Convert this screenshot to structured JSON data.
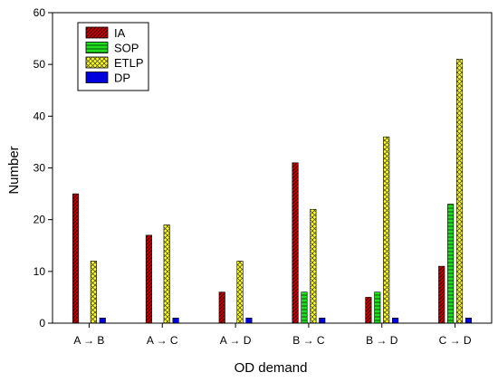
{
  "chart_data": {
    "type": "bar",
    "title": "",
    "xlabel": "OD demand",
    "ylabel": "Number",
    "ylim": [
      0,
      60
    ],
    "yticks": [
      0,
      10,
      20,
      30,
      40,
      50,
      60
    ],
    "categories": [
      "A → B",
      "A → C",
      "A → D",
      "B → C",
      "B → D",
      "C → D"
    ],
    "series": [
      {
        "name": "IA",
        "values": [
          25,
          17,
          6,
          31,
          5,
          11
        ],
        "color": "#cc0000",
        "pattern": "diagonal-hatch"
      },
      {
        "name": "SOP",
        "values": [
          0,
          0,
          0,
          6,
          6,
          23
        ],
        "color": "#22dd22",
        "pattern": "horizontal-lines"
      },
      {
        "name": "ETLP",
        "values": [
          12,
          19,
          12,
          22,
          36,
          51
        ],
        "color": "#ffff33",
        "pattern": "crosshatch"
      },
      {
        "name": "DP",
        "values": [
          1,
          1,
          1,
          1,
          1,
          1
        ],
        "color": "#0000dd",
        "pattern": "solid"
      }
    ],
    "grid": false,
    "legend_position": "top-left"
  }
}
